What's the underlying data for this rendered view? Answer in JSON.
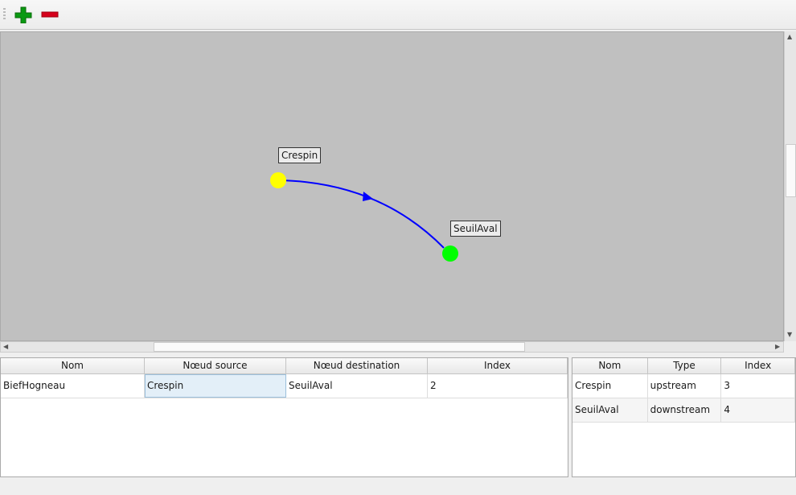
{
  "toolbar": {
    "add_icon": "plus-icon",
    "remove_icon": "minus-icon"
  },
  "graph": {
    "nodes": [
      {
        "name": "Crespin",
        "color": "#ffff00"
      },
      {
        "name": "SeuilAval",
        "color": "#00ff00"
      }
    ],
    "edge": {
      "from": "Crespin",
      "to": "SeuilAval",
      "color": "#0000ff"
    }
  },
  "reach_table": {
    "headers": [
      "Nom",
      "Nœud source",
      "Nœud destination",
      "Index"
    ],
    "rows": [
      [
        "BiefHogneau",
        "Crespin",
        "SeuilAval",
        "2"
      ]
    ]
  },
  "node_table": {
    "headers": [
      "Nom",
      "Type",
      "Index"
    ],
    "rows": [
      [
        "Crespin",
        "upstream",
        "3"
      ],
      [
        "SeuilAval",
        "downstream",
        "4"
      ]
    ]
  }
}
